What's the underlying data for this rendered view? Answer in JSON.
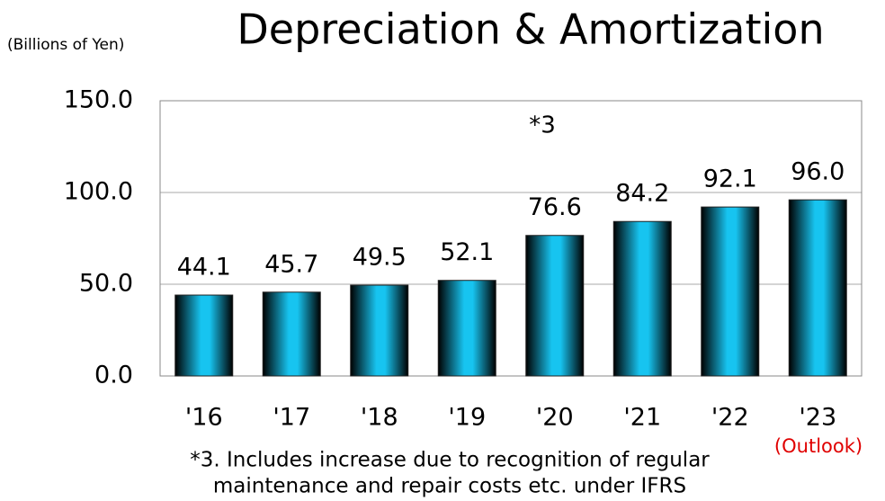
{
  "chart_data": {
    "type": "bar",
    "title": "Depreciation & Amortization",
    "unit_label": "(Billions of Yen)",
    "categories": [
      "'16",
      "'17",
      "'18",
      "'19",
      "'20",
      "'21",
      "'22",
      "'23"
    ],
    "values": [
      44.1,
      45.7,
      49.5,
      52.1,
      76.6,
      84.2,
      92.1,
      96.0
    ],
    "value_labels": [
      "44.1",
      "45.7",
      "49.5",
      "52.1",
      "76.6",
      "84.2",
      "92.1",
      "96.0"
    ],
    "color": "#17c4f0",
    "ylim": [
      0,
      150
    ],
    "yticks": [
      {
        "value": 0,
        "label": "0.0"
      },
      {
        "value": 50,
        "label": "50.0"
      },
      {
        "value": 100,
        "label": "100.0"
      },
      {
        "value": 150,
        "label": "150.0"
      }
    ],
    "grid": true,
    "annotation": "*3",
    "outlook_note": "(Outlook)",
    "footnote": [
      "*3. Includes increase due to recognition of regular",
      "maintenance and repair costs etc. under IFRS"
    ]
  }
}
